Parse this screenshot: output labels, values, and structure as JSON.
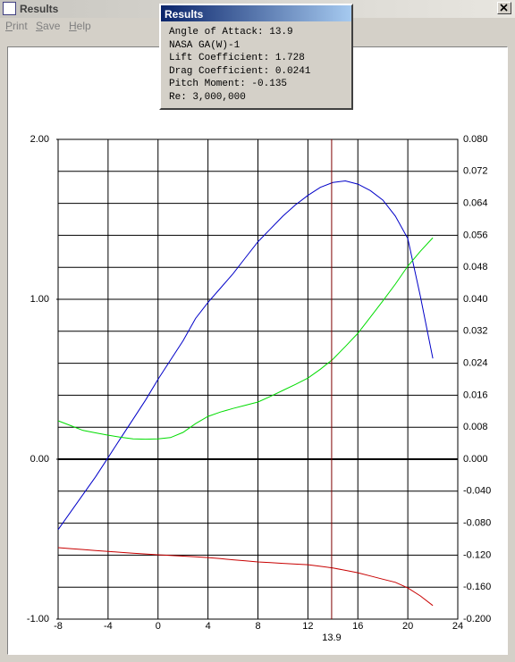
{
  "window": {
    "title": "Results",
    "menu": [
      "Print",
      "Save",
      "Help"
    ]
  },
  "popup": {
    "title": "Results",
    "lines": [
      "Angle of Attack: 13.9",
      "NASA GA(W)-1",
      "Lift Coefficient: 1.728",
      "Drag Coefficient: 0.0241",
      "Pitch Moment: -0.135",
      "Re: 3,000,000"
    ]
  },
  "chart_data": {
    "type": "line",
    "x": [
      -8,
      -7,
      -6,
      -5,
      -4,
      -3,
      -2,
      -1,
      0,
      1,
      2,
      3,
      4,
      5,
      6,
      7,
      8,
      9,
      10,
      11,
      12,
      13,
      14,
      15,
      16,
      17,
      18,
      19,
      20,
      21,
      22
    ],
    "series": [
      {
        "name": "Lift Coefficient",
        "color": "#0000c8",
        "axis": "y",
        "values": [
          -0.44,
          -0.33,
          -0.22,
          -0.11,
          0.01,
          0.13,
          0.25,
          0.37,
          0.5,
          0.62,
          0.74,
          0.88,
          0.98,
          1.07,
          1.16,
          1.26,
          1.36,
          1.44,
          1.52,
          1.59,
          1.65,
          1.7,
          1.73,
          1.74,
          1.72,
          1.68,
          1.62,
          1.52,
          1.38,
          1.02,
          0.63
        ]
      },
      {
        "name": "Drag Coefficient",
        "color": "#00dc00",
        "axis": "y2",
        "values": [
          0.0096,
          0.0084,
          0.0072,
          0.0066,
          0.006,
          0.0055,
          0.0051,
          0.005,
          0.0051,
          0.0054,
          0.0067,
          0.0089,
          0.0107,
          0.0118,
          0.0127,
          0.0135,
          0.0143,
          0.0157,
          0.0172,
          0.0187,
          0.0203,
          0.0225,
          0.025,
          0.0282,
          0.0315,
          0.0355,
          0.0396,
          0.0438,
          0.0483,
          0.052,
          0.0554
        ]
      },
      {
        "name": "Pitch Moment",
        "color": "#c80000",
        "axis": "y3",
        "values": [
          -0.1106,
          -0.1118,
          -0.113,
          -0.1142,
          -0.1153,
          -0.1164,
          -0.1175,
          -0.1186,
          -0.1196,
          -0.1204,
          -0.1212,
          -0.122,
          -0.123,
          -0.1244,
          -0.1258,
          -0.1272,
          -0.1285,
          -0.1294,
          -0.1303,
          -0.1312,
          -0.132,
          -0.134,
          -0.136,
          -0.139,
          -0.142,
          -0.146,
          -0.15,
          -0.154,
          -0.161,
          -0.171,
          -0.183
        ]
      }
    ],
    "marker_x": 13.9,
    "marker_color": "#800000",
    "xlim": [
      -8,
      24
    ],
    "xticks": [
      -8,
      -4,
      0,
      4,
      8,
      12,
      16,
      20,
      24
    ],
    "ylim": [
      -1,
      2
    ],
    "yticks": [
      {
        "value": -1,
        "label": "-1.00"
      },
      {
        "value": 0,
        "label": "0.00"
      },
      {
        "value": 1,
        "label": "1.00"
      },
      {
        "value": 2,
        "label": "2.00"
      }
    ],
    "y2lim": [
      0,
      0.08
    ],
    "y2ticks": [
      {
        "value": 0,
        "label": "0.000"
      },
      {
        "value": 0.008,
        "label": "0.008"
      },
      {
        "value": 0.016,
        "label": "0.016"
      },
      {
        "value": 0.024,
        "label": "0.024"
      },
      {
        "value": 0.032,
        "label": "0.032"
      },
      {
        "value": 0.04,
        "label": "0.040"
      },
      {
        "value": 0.048,
        "label": "0.048"
      },
      {
        "value": 0.056,
        "label": "0.056"
      },
      {
        "value": 0.064,
        "label": "0.064"
      },
      {
        "value": 0.072,
        "label": "0.072"
      },
      {
        "value": 0.08,
        "label": "0.080"
      }
    ],
    "y3lim": [
      -0.2,
      0
    ],
    "y3ticks": [
      {
        "value": -0.04,
        "label": "-0.040"
      },
      {
        "value": -0.08,
        "label": "-0.080"
      },
      {
        "value": -0.12,
        "label": "-0.120"
      },
      {
        "value": -0.16,
        "label": "-0.160"
      },
      {
        "value": -0.2,
        "label": "-0.200"
      }
    ],
    "grid": true
  }
}
